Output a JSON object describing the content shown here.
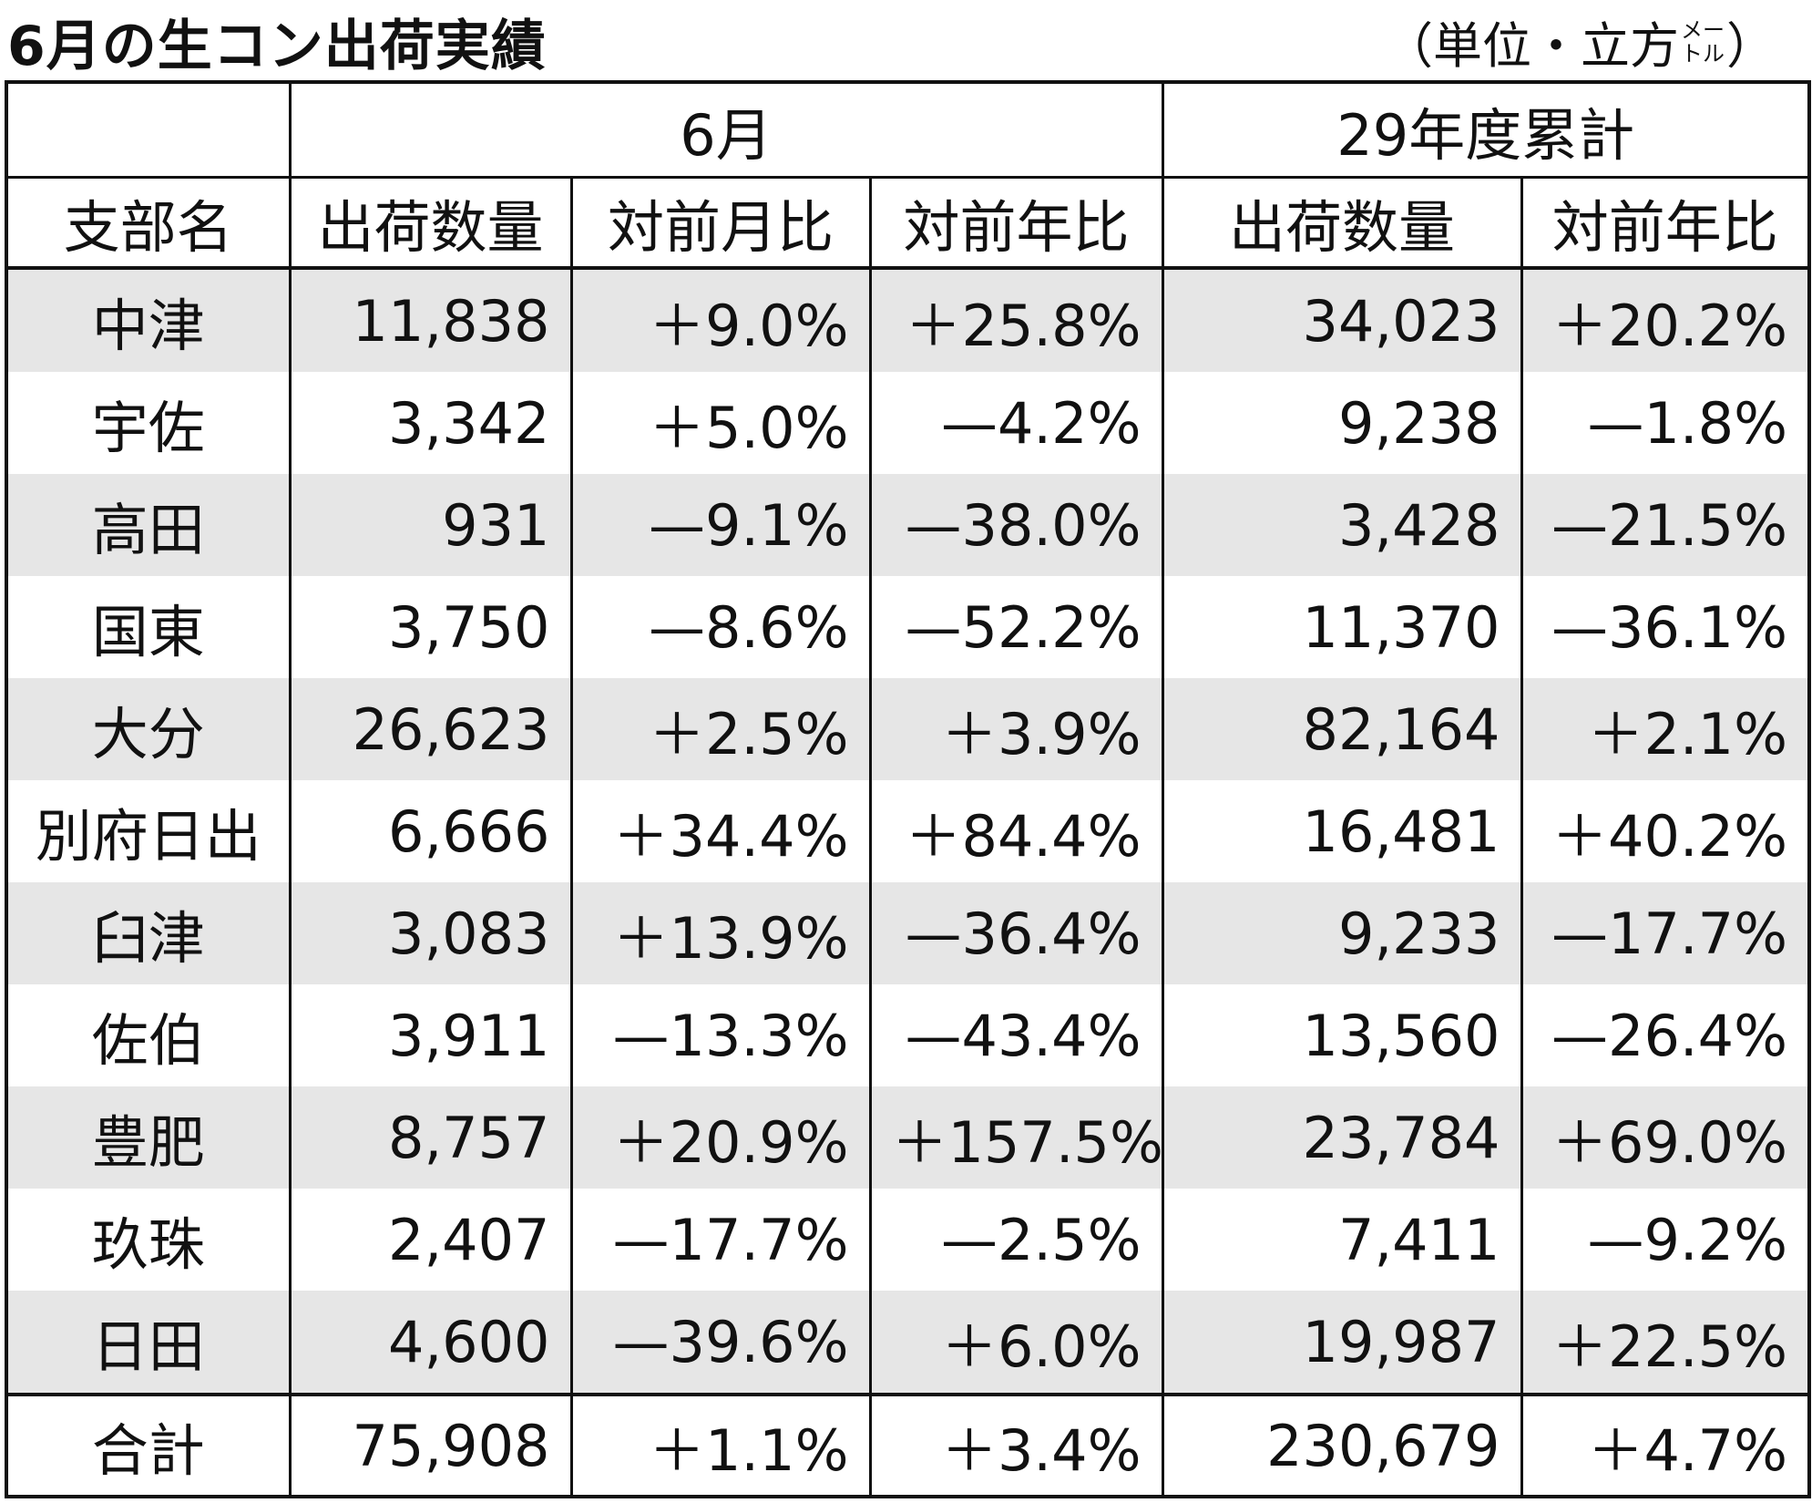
{
  "header": {
    "title": "6月の生コン出荷実績",
    "unit_open": "（単位・立方",
    "unit_small": [
      "メー",
      "トル"
    ],
    "unit_close": "）"
  },
  "table": {
    "header_top": [
      "6月",
      "29年度累計"
    ],
    "header": [
      "支部名",
      "出荷数量",
      "対前月比",
      "対前年比",
      "出荷数量",
      "対前年比"
    ],
    "rows": [
      [
        "中津",
        "11,838",
        "＋9.0%",
        "＋25.8%",
        "34,023",
        "＋20.2%"
      ],
      [
        "宇佐",
        "3,342",
        "＋5.0%",
        "—4.2%",
        "9,238",
        "—1.8%"
      ],
      [
        "高田",
        "931",
        "—9.1%",
        "—38.0%",
        "3,428",
        "—21.5%"
      ],
      [
        "国東",
        "3,750",
        "—8.6%",
        "—52.2%",
        "11,370",
        "—36.1%"
      ],
      [
        "大分",
        "26,623",
        "＋2.5%",
        "＋3.9%",
        "82,164",
        "＋2.1%"
      ],
      [
        "別府日出",
        "6,666",
        "＋34.4%",
        "＋84.4%",
        "16,481",
        "＋40.2%"
      ],
      [
        "臼津",
        "3,083",
        "＋13.9%",
        "—36.4%",
        "9,233",
        "—17.7%"
      ],
      [
        "佐伯",
        "3,911",
        "—13.3%",
        "—43.4%",
        "13,560",
        "—26.4%"
      ],
      [
        "豊肥",
        "8,757",
        "＋20.9%",
        "＋157.5%",
        "23,784",
        "＋69.0%"
      ],
      [
        "玖珠",
        "2,407",
        "—17.7%",
        "—2.5%",
        "7,411",
        "—9.2%"
      ],
      [
        "日田",
        "4,600",
        "—39.6%",
        "＋6.0%",
        "19,987",
        "＋22.5%"
      ]
    ],
    "total": [
      "合計",
      "75,908",
      "＋1.1%",
      "＋3.4%",
      "230,679",
      "＋4.7%"
    ]
  }
}
